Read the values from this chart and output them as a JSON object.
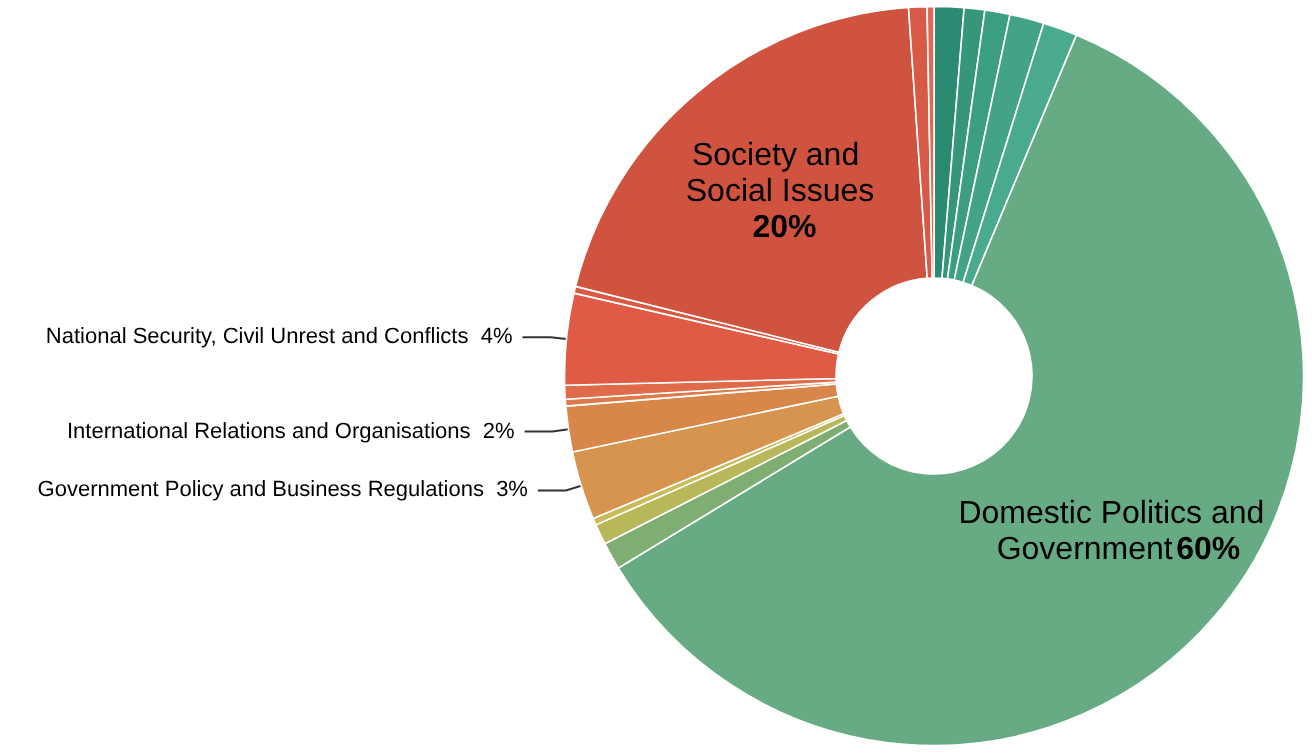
{
  "chart_data": {
    "type": "donut",
    "categories": [
      null,
      null,
      null,
      null,
      null,
      "Domestic Politics and Government",
      null,
      null,
      null,
      "Government Policy and Business Regulations",
      "International Relations and Organisations",
      null,
      null,
      "National Security, Civil Unrest and Conflicts",
      null,
      "Society and Social Issues",
      null,
      null
    ],
    "values": [
      1.3,
      0.9,
      1.1,
      1.5,
      1.5,
      60,
      1.2,
      0.9,
      0.3,
      3,
      2,
      0.3,
      0.6,
      4,
      0.3,
      20,
      0.8,
      0.3
    ],
    "value_labels": [
      null,
      null,
      null,
      null,
      null,
      "60%",
      null,
      null,
      null,
      "3%",
      "2%",
      null,
      null,
      "4%",
      null,
      "20%",
      null,
      null
    ],
    "colors": [
      "#2a8a72",
      "#359679",
      "#3b9d81",
      "#42a387",
      "#4aaa8e",
      "#66ab84",
      "#7fae73",
      "#b8b85a",
      "#c9bb5a",
      "#d6944f",
      "#d9864b",
      "#dd7a4a",
      "#df6b4a",
      "#e05b45",
      "#d85a45",
      "#d05340",
      "#d65a45",
      "#dd6a55"
    ],
    "legend": false
  }
}
